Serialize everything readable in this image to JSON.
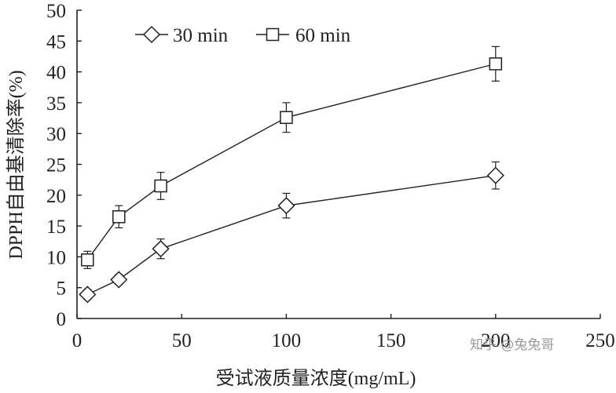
{
  "chart_data": {
    "type": "line",
    "xlabel": "受试液质量浓度(mg/mL)",
    "ylabel": "DPPH自由基清除率(%)",
    "xlim": [
      0,
      250
    ],
    "ylim": [
      0,
      50
    ],
    "xticks": [
      0,
      50,
      100,
      150,
      200,
      250
    ],
    "yticks": [
      0,
      5,
      10,
      15,
      20,
      25,
      30,
      35,
      40,
      45,
      50
    ],
    "grid": false,
    "legend": "top-left",
    "error_bars": true,
    "series": [
      {
        "name": "30 min",
        "marker": "diamond",
        "x": [
          5,
          20,
          40,
          100,
          200
        ],
        "y": [
          3.9,
          6.3,
          11.3,
          18.3,
          23.2
        ],
        "err": [
          0.8,
          0.8,
          1.6,
          2.0,
          2.2
        ]
      },
      {
        "name": "60 min",
        "marker": "square",
        "x": [
          5,
          20,
          40,
          100,
          200
        ],
        "y": [
          9.5,
          16.5,
          21.5,
          32.6,
          41.3
        ],
        "err": [
          1.4,
          1.8,
          2.2,
          2.4,
          2.8
        ]
      }
    ]
  },
  "watermark": "知乎 @兔兔哥",
  "colors": {
    "ink": "#231f20",
    "background": "#ffffff"
  }
}
